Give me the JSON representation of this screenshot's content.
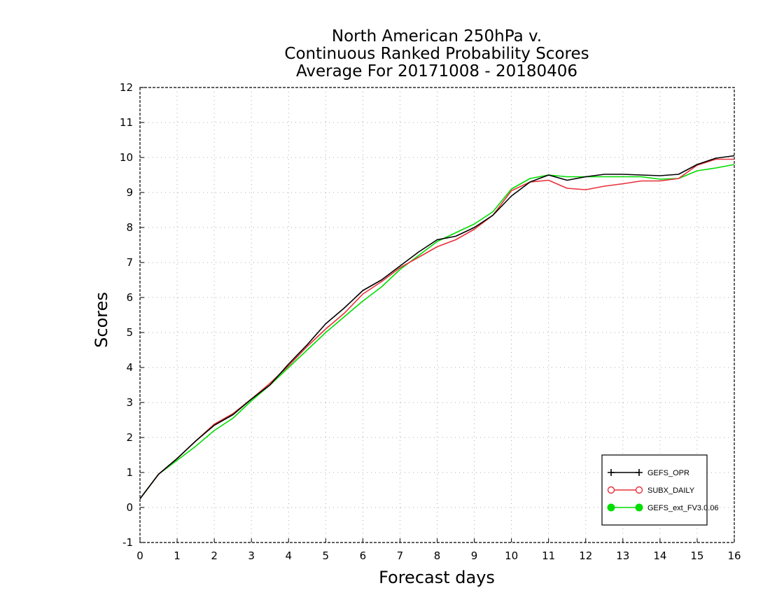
{
  "chart_data": {
    "type": "line",
    "title": [
      "North American 250hPa v.",
      "Continuous Ranked Probability Scores",
      "Average For 20171008 - 20180406"
    ],
    "xlabel": "Forecast days",
    "ylabel": "Scores",
    "xlim": [
      0,
      16
    ],
    "ylim": [
      -1,
      12
    ],
    "xticks": [
      0,
      1,
      2,
      3,
      4,
      5,
      6,
      7,
      8,
      9,
      10,
      11,
      12,
      13,
      14,
      15,
      16
    ],
    "yticks": [
      -1,
      0,
      1,
      2,
      3,
      4,
      5,
      6,
      7,
      8,
      9,
      10,
      11,
      12
    ],
    "grid": true,
    "legend_position": "bottom-right",
    "x": [
      0,
      0.5,
      1,
      1.5,
      2,
      2.5,
      3,
      3.5,
      4,
      4.5,
      5,
      5.5,
      6,
      6.5,
      7,
      7.5,
      8,
      8.5,
      9,
      9.5,
      10,
      10.5,
      11,
      11.5,
      12,
      12.5,
      13,
      13.5,
      14,
      14.5,
      15,
      15.5,
      16
    ],
    "series": [
      {
        "name": "GEFS_OPR",
        "color": "#000000",
        "marker": "plus",
        "values": [
          0.25,
          0.95,
          1.4,
          1.9,
          2.35,
          2.65,
          3.1,
          3.5,
          4.1,
          4.65,
          5.25,
          5.7,
          6.2,
          6.5,
          6.9,
          7.3,
          7.65,
          7.75,
          8.0,
          8.35,
          8.9,
          9.3,
          9.5,
          9.35,
          9.45,
          9.52,
          9.52,
          9.5,
          9.48,
          9.52,
          9.8,
          9.98,
          10.05
        ]
      },
      {
        "name": "SUBX_DAILY",
        "color": "#e8303a",
        "marker": "open-circle",
        "values": [
          0.25,
          0.95,
          1.4,
          1.9,
          2.38,
          2.68,
          3.1,
          3.55,
          4.05,
          4.6,
          5.1,
          5.55,
          6.1,
          6.45,
          6.85,
          7.15,
          7.45,
          7.65,
          7.95,
          8.35,
          9.05,
          9.3,
          9.35,
          9.12,
          9.08,
          9.18,
          9.25,
          9.33,
          9.33,
          9.4,
          9.78,
          9.95,
          9.95
        ]
      },
      {
        "name": "GEFS_ext_FV3.0.06",
        "color": "#00dd00",
        "marker": "filled-circle",
        "values": [
          0.25,
          0.95,
          1.35,
          1.75,
          2.2,
          2.55,
          3.05,
          3.5,
          4.0,
          4.5,
          5.0,
          5.45,
          5.9,
          6.3,
          6.8,
          7.2,
          7.6,
          7.85,
          8.1,
          8.45,
          9.1,
          9.4,
          9.5,
          9.45,
          9.45,
          9.45,
          9.45,
          9.45,
          9.38,
          9.4,
          9.62,
          9.7,
          9.8
        ]
      }
    ]
  }
}
